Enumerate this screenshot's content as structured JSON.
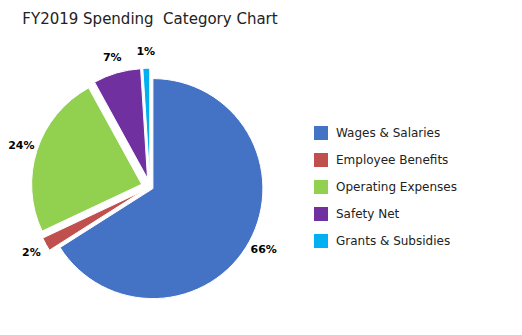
{
  "chart_data": {
    "type": "pie",
    "title": "FY2019 Spending  Category Chart",
    "categories": [
      "Wages & Salaries",
      "Employee Benefits",
      "Operating Expenses",
      "Safety Net",
      "Grants & Subsidies"
    ],
    "values": [
      66,
      2,
      24,
      7,
      1
    ],
    "value_labels": [
      "66%",
      "2%",
      "24%",
      "7%",
      "1%"
    ],
    "colors": [
      "#4472C4",
      "#C0504D",
      "#92D050",
      "#7030A0",
      "#00B0F0"
    ],
    "data_labels": true,
    "legend": "right"
  }
}
